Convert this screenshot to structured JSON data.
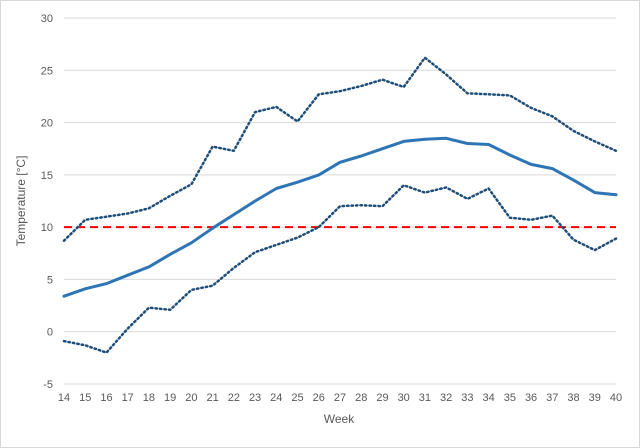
{
  "chart_data": {
    "type": "line",
    "xlabel": "Week",
    "ylabel": "Temperature [°C]",
    "x": [
      14,
      15,
      16,
      17,
      18,
      19,
      20,
      21,
      22,
      23,
      24,
      25,
      26,
      27,
      28,
      29,
      30,
      31,
      32,
      33,
      34,
      35,
      36,
      37,
      38,
      39,
      40
    ],
    "ylim": [
      -5,
      30
    ],
    "yticks": [
      -5,
      0,
      5,
      10,
      15,
      20,
      25,
      30
    ],
    "grid": true,
    "legend": "none",
    "series": [
      {
        "style": "solid",
        "color": "#2e75b6",
        "values": [
          3.4,
          4.1,
          4.6,
          5.4,
          6.2,
          7.4,
          8.5,
          9.9,
          11.2,
          12.5,
          13.7,
          14.3,
          15.0,
          16.2,
          16.8,
          17.5,
          18.2,
          18.4,
          18.5,
          18.0,
          17.9,
          16.9,
          16.0,
          15.6,
          14.5,
          13.3,
          13.1
        ]
      },
      {
        "style": "dotted",
        "color": "#1f4e79",
        "values": [
          8.7,
          10.7,
          11.0,
          11.3,
          11.8,
          13.0,
          14.1,
          17.7,
          17.3,
          21.0,
          21.5,
          20.1,
          22.7,
          23.0,
          23.5,
          24.1,
          23.4,
          26.2,
          24.6,
          22.8,
          22.7,
          22.6,
          21.4,
          20.6,
          19.2,
          18.2,
          17.3
        ]
      },
      {
        "style": "dotted",
        "color": "#1f4e79",
        "values": [
          -0.9,
          -1.3,
          -2.0,
          0.3,
          2.3,
          2.1,
          4.0,
          4.4,
          6.1,
          7.6,
          8.3,
          9.0,
          10.0,
          12.0,
          12.1,
          12.0,
          14.0,
          13.3,
          13.8,
          12.7,
          13.7,
          10.9,
          10.7,
          11.1,
          8.8,
          7.8,
          8.9
        ]
      }
    ],
    "reference_line": {
      "y": 10,
      "style": "dashed",
      "color": "#ff0000"
    }
  }
}
